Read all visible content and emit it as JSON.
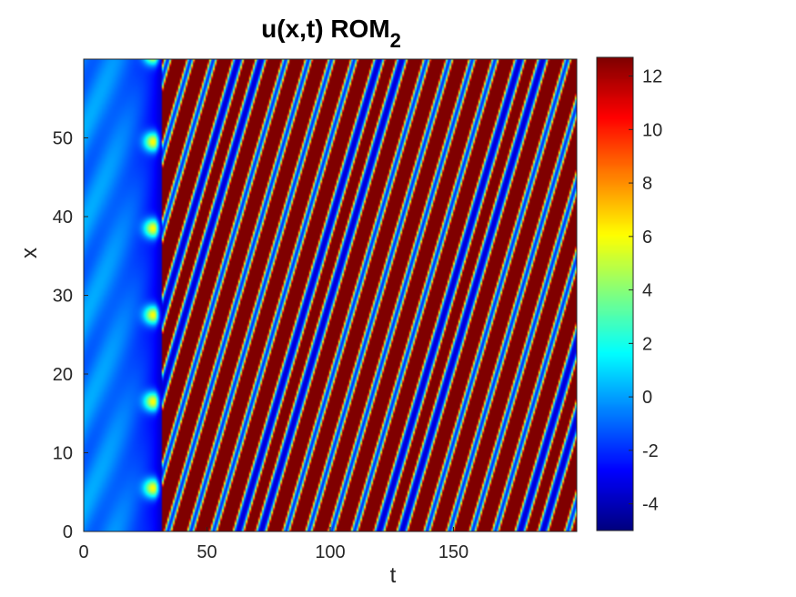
{
  "chart_data": {
    "type": "heatmap",
    "title": "u(x,t) ROM",
    "title_subscript": "2",
    "xlabel": "t",
    "ylabel": "x",
    "xlim": [
      0,
      200
    ],
    "ylim": [
      0,
      60
    ],
    "xticks": [
      0,
      50,
      100,
      150
    ],
    "yticks": [
      0,
      10,
      20,
      30,
      40,
      50
    ],
    "colorbar": {
      "colormap": "jet",
      "clim": [
        -5,
        12.7
      ],
      "ticks": [
        -4,
        -2,
        0,
        2,
        4,
        6,
        8,
        10,
        12
      ]
    },
    "field": {
      "transient_end_t": 32,
      "num_travelling_waves": 20,
      "wave_speed": 1.05,
      "wave_period_t": 9.25,
      "background_value": -3.6,
      "peak_value": 12.5
    },
    "grid": false,
    "colors": {
      "axis": "#262626",
      "background": "#ffffff"
    }
  }
}
